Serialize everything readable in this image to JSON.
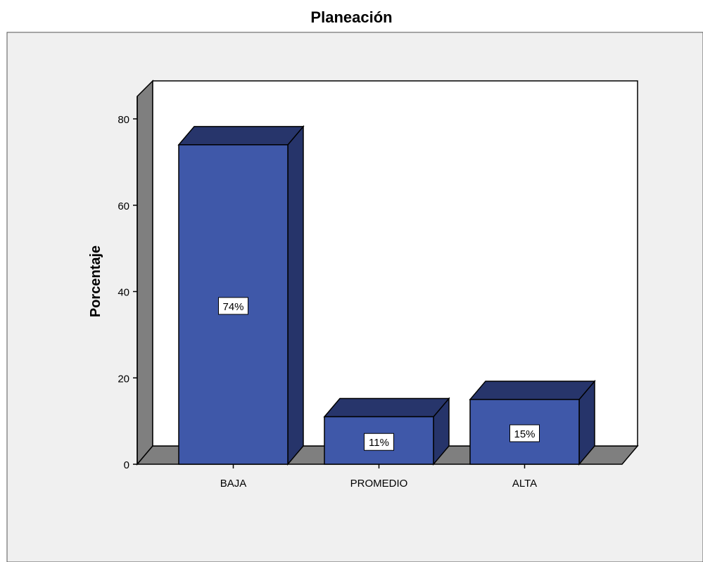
{
  "chart_data": {
    "type": "bar",
    "title": "Planeación",
    "xlabel": "",
    "ylabel": "Porcentaje",
    "categories": [
      "BAJA",
      "PROMEDIO",
      "ALTA"
    ],
    "values": [
      74,
      11,
      15
    ],
    "data_labels": [
      "74%",
      "11%",
      "15%"
    ],
    "ylim": [
      0,
      80
    ],
    "yticks": [
      "0",
      "20",
      "40",
      "60",
      "80"
    ],
    "grid": false,
    "legend": "none",
    "style": "3d"
  },
  "colors": {
    "bar_front": "#3f58a9",
    "bar_top": "#27356b",
    "bar_side": "#26346a",
    "panel_bg": "#f0f0f0",
    "back_wall": "#ffffff",
    "side_wall": "#7f7f7f",
    "floor": "#7f7f7f"
  }
}
